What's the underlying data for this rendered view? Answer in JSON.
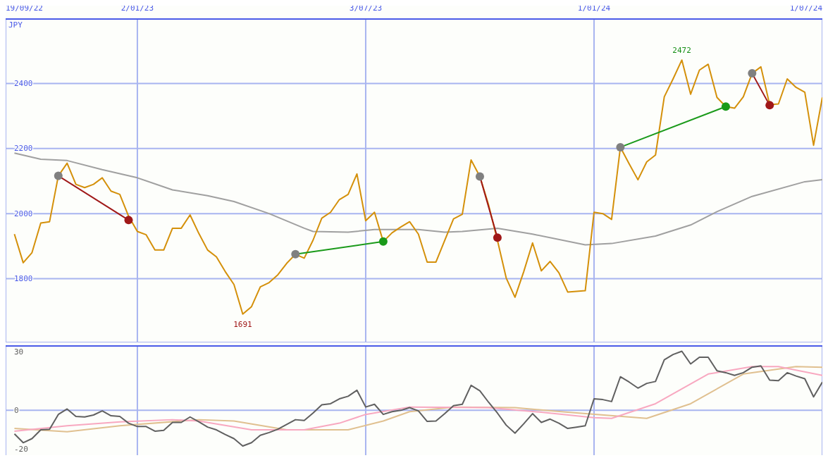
{
  "chart_data": [
    {
      "type": "line",
      "ylabel": "JPY",
      "grid": true,
      "marker": "none",
      "line_style": "solid",
      "xlim": [
        "2022-09-19",
        "2024-07-01"
      ],
      "xticks": [
        {
          "value": "2022-09-19",
          "label": "19/09/22"
        },
        {
          "value": "2023-01-02",
          "label": "2/01/23"
        },
        {
          "value": "2023-07-03",
          "label": "3/07/23"
        },
        {
          "value": "2024-01-01",
          "label": "1/01/24"
        },
        {
          "value": "2024-07-01",
          "label": "1/07/24"
        }
      ],
      "ylim": [
        1604,
        2598
      ],
      "yticks": [
        1800,
        2000,
        2200,
        2400
      ],
      "x": [
        "2022-09-26",
        "2022-10-03",
        "2022-10-10",
        "2022-10-17",
        "2022-10-24",
        "2022-10-31",
        "2022-11-07",
        "2022-11-14",
        "2022-11-21",
        "2022-11-28",
        "2022-12-05",
        "2022-12-12",
        "2022-12-19",
        "2022-12-26",
        "2023-01-02",
        "2023-01-09",
        "2023-01-16",
        "2023-01-23",
        "2023-01-30",
        "2023-02-06",
        "2023-02-13",
        "2023-02-20",
        "2023-02-27",
        "2023-03-06",
        "2023-03-13",
        "2023-03-20",
        "2023-03-27",
        "2023-04-03",
        "2023-04-10",
        "2023-04-17",
        "2023-04-24",
        "2023-05-01",
        "2023-05-08",
        "2023-05-15",
        "2023-05-22",
        "2023-05-29",
        "2023-06-05",
        "2023-06-12",
        "2023-06-19",
        "2023-06-26",
        "2023-07-03",
        "2023-07-10",
        "2023-07-17",
        "2023-07-24",
        "2023-07-31",
        "2023-08-07",
        "2023-08-14",
        "2023-08-21",
        "2023-08-28",
        "2023-09-04",
        "2023-09-11",
        "2023-09-18",
        "2023-09-25",
        "2023-10-02",
        "2023-10-09",
        "2023-10-16",
        "2023-10-23",
        "2023-10-30",
        "2023-11-06",
        "2023-11-13",
        "2023-11-20",
        "2023-11-27",
        "2023-12-04",
        "2023-12-11",
        "2023-12-18",
        "2023-12-25",
        "2024-01-01",
        "2024-01-08",
        "2024-01-15",
        "2024-01-22",
        "2024-01-29",
        "2024-02-05",
        "2024-02-12",
        "2024-02-19",
        "2024-02-26",
        "2024-03-04",
        "2024-03-11",
        "2024-03-18",
        "2024-03-25",
        "2024-04-01",
        "2024-04-08",
        "2024-04-15",
        "2024-04-22",
        "2024-04-29",
        "2024-05-06",
        "2024-05-13",
        "2024-05-20",
        "2024-05-27",
        "2024-06-03",
        "2024-06-10",
        "2024-06-17",
        "2024-06-24",
        "2024-07-01"
      ],
      "series": [
        {
          "color": "#a0a0a0",
          "x": [
            "2022-09-26",
            "2022-10-17",
            "2022-11-07",
            "2022-12-05",
            "2023-01-02",
            "2023-01-30",
            "2023-02-27",
            "2023-03-20",
            "2023-04-17",
            "2023-05-15",
            "2023-05-22",
            "2023-06-19",
            "2023-07-10",
            "2023-08-14",
            "2023-09-04",
            "2023-09-18",
            "2023-10-16",
            "2023-11-13",
            "2023-12-25",
            "2024-01-15",
            "2024-02-19",
            "2024-03-18",
            "2024-04-08",
            "2024-05-06",
            "2024-06-17",
            "2024-07-01"
          ],
          "values": [
            2186,
            2167,
            2163,
            2135,
            2110,
            2073,
            2055,
            2037,
            2000,
            1955,
            1945,
            1943,
            1951,
            1951,
            1943,
            1945,
            1955,
            1937,
            1904,
            1908,
            1931,
            1965,
            2006,
            2053,
            2098,
            2104
          ]
        },
        {
          "color": "#d4900a",
          "values": [
            1937,
            1849,
            1880,
            1971,
            1975,
            2116,
            2155,
            2090,
            2080,
            2090,
            2110,
            2069,
            2059,
            1992,
            1945,
            1935,
            1888,
            1888,
            1955,
            1955,
            1996,
            1939,
            1888,
            1867,
            1822,
            1782,
            1691,
            1714,
            1775,
            1788,
            1812,
            1847,
            1875,
            1863,
            1918,
            1986,
            2004,
            2043,
            2059,
            2122,
            1978,
            2004,
            1914,
            1941,
            1959,
            1975,
            1937,
            1851,
            1851,
            1918,
            1984,
            1998,
            2165,
            2114,
            2026,
            1918,
            1802,
            1743,
            1822,
            1910,
            1824,
            1853,
            1818,
            1759,
            1761,
            1763,
            2004,
            2000,
            1982,
            2204,
            2153,
            2104,
            2159,
            2180,
            2359,
            2414,
            2472,
            2367,
            2441,
            2459,
            2357,
            2329,
            2324,
            2359,
            2431,
            2451,
            2335,
            2337,
            2414,
            2388,
            2373,
            2210,
            2357
          ]
        },
        {
          "color": "#a01818",
          "marker": "circle",
          "x": [
            "2022-10-31",
            "2022-12-26"
          ],
          "values": [
            2116,
            1980
          ],
          "colors": [
            "#808080",
            "#a01818"
          ]
        },
        {
          "color": "#1a9a1a",
          "marker": "circle",
          "x": [
            "2023-05-08",
            "2023-07-17"
          ],
          "values": [
            1875,
            1914
          ],
          "colors": [
            "#808080",
            "#1a9a1a"
          ]
        },
        {
          "color": "#a01818",
          "marker": "circle",
          "x": [
            "2023-10-02",
            "2023-10-16"
          ],
          "values": [
            2114,
            1926
          ],
          "colors": [
            "#808080",
            "#a01818"
          ]
        },
        {
          "color": "#1a9a1a",
          "marker": "circle",
          "x": [
            "2024-01-22",
            "2024-04-15"
          ],
          "values": [
            2204,
            2329
          ],
          "colors": [
            "#808080",
            "#1a9a1a"
          ]
        },
        {
          "color": "#a01818",
          "marker": "circle",
          "x": [
            "2024-05-06",
            "2024-05-20"
          ],
          "values": [
            2431,
            2333
          ],
          "colors": [
            "#808080",
            "#a01818"
          ]
        }
      ],
      "annotations": [
        {
          "text": "2472",
          "x": "2024-03-11",
          "y": 2472
        },
        {
          "text": "1691",
          "x": "2023-03-27",
          "y": 1691
        }
      ]
    },
    {
      "type": "line",
      "grid": "x",
      "marker": "none",
      "line_style": "solid",
      "tick_labels": "y",
      "xlim": [
        "2022-09-19",
        "2024-07-01"
      ],
      "xticks": [
        {
          "value": "2022-09-19",
          "label": null
        },
        {
          "value": "2023-01-02",
          "label": null
        },
        {
          "value": "2023-07-03",
          "label": null
        },
        {
          "value": "2024-01-01",
          "label": null
        },
        {
          "value": "2024-07-01",
          "label": null
        }
      ],
      "ylim": [
        -23,
        33
      ],
      "yticks": [
        -20,
        0,
        30
      ],
      "ref_lines": [
        {
          "axis": "y",
          "value": 0,
          "color": "#a8b4f0"
        }
      ],
      "series": [
        {
          "color": "#e0c090",
          "x": [
            "2022-09-26",
            "2022-11-07",
            "2022-12-19",
            "2023-02-20",
            "2023-03-20",
            "2023-05-01",
            "2023-06-19",
            "2023-07-17",
            "2023-08-07",
            "2023-09-11",
            "2023-10-30",
            "2023-12-11",
            "2024-02-12",
            "2024-03-18",
            "2024-04-29",
            "2024-06-10",
            "2024-07-01"
          ],
          "values": [
            -9.3,
            -11,
            -7.9,
            -4.8,
            -5.5,
            -10,
            -10,
            -5.5,
            -0.7,
            1.7,
            1.4,
            -1,
            -4.1,
            3.4,
            18.6,
            22.4,
            22.1
          ]
        },
        {
          "color": "#f8a8c0",
          "x": [
            "2022-09-26",
            "2022-11-07",
            "2022-12-19",
            "2023-01-30",
            "2023-02-20",
            "2023-04-03",
            "2023-05-15",
            "2023-06-12",
            "2023-07-03",
            "2023-08-07",
            "2023-10-09",
            "2023-11-20",
            "2024-01-01",
            "2024-01-15",
            "2024-02-19",
            "2024-04-01",
            "2024-05-06",
            "2024-05-27",
            "2024-07-01"
          ],
          "values": [
            -10.7,
            -7.9,
            -5.9,
            -4.8,
            -5.5,
            -10,
            -10,
            -6.6,
            -2.1,
            1.7,
            1.4,
            -1,
            -3.8,
            -4.1,
            3.4,
            18.6,
            22.4,
            22.4,
            17.9
          ]
        },
        {
          "color": "#606060",
          "x": [
            "2022-09-26",
            "2022-10-03",
            "2022-10-10",
            "2022-10-17",
            "2022-10-24",
            "2022-10-31",
            "2022-11-07",
            "2022-11-14",
            "2022-11-21",
            "2022-11-28",
            "2022-12-05",
            "2022-12-12",
            "2022-12-19",
            "2022-12-26",
            "2023-01-02",
            "2023-01-09",
            "2023-01-16",
            "2023-01-23",
            "2023-01-30",
            "2023-02-06",
            "2023-02-13",
            "2023-02-20",
            "2023-02-27",
            "2023-03-06",
            "2023-03-13",
            "2023-03-20",
            "2023-03-27",
            "2023-04-03",
            "2023-04-10",
            "2023-04-17",
            "2023-04-24",
            "2023-05-01",
            "2023-05-08",
            "2023-05-15",
            "2023-05-22",
            "2023-05-29",
            "2023-06-05",
            "2023-06-12",
            "2023-06-19",
            "2023-06-26",
            "2023-07-03",
            "2023-07-10",
            "2023-07-17",
            "2023-07-24",
            "2023-07-31",
            "2023-08-07",
            "2023-08-14",
            "2023-08-21",
            "2023-08-28",
            "2023-09-04",
            "2023-09-11",
            "2023-09-18",
            "2023-09-25",
            "2023-10-02",
            "2023-10-09",
            "2023-10-16",
            "2023-10-23",
            "2023-10-30",
            "2023-11-06",
            "2023-11-13",
            "2023-11-20",
            "2023-11-27",
            "2023-12-04",
            "2023-12-11",
            "2023-12-18",
            "2023-12-25",
            "2024-01-01",
            "2024-01-08",
            "2024-01-15",
            "2024-01-22",
            "2024-01-29",
            "2024-02-05",
            "2024-02-12",
            "2024-02-19",
            "2024-02-26",
            "2024-03-04",
            "2024-03-11",
            "2024-03-18",
            "2024-03-25",
            "2024-04-01",
            "2024-04-08",
            "2024-04-15",
            "2024-04-22",
            "2024-04-29",
            "2024-05-06",
            "2024-05-13",
            "2024-05-20",
            "2024-05-27",
            "2024-06-03",
            "2024-06-10",
            "2024-06-17",
            "2024-06-24",
            "2024-07-01"
          ],
          "values": [
            -12.1,
            -16.6,
            -14.5,
            -10,
            -9.7,
            -2.1,
            0.7,
            -3.1,
            -3.4,
            -2.4,
            -0.3,
            -2.8,
            -3.1,
            -6.6,
            -8.3,
            -8.3,
            -10.7,
            -10.3,
            -6.2,
            -6.2,
            -3.4,
            -5.9,
            -8.6,
            -10,
            -12.4,
            -14.5,
            -18.3,
            -16.6,
            -12.8,
            -11.4,
            -9.7,
            -7.2,
            -4.8,
            -5.2,
            -1.4,
            2.8,
            3.4,
            5.9,
            7.2,
            10.3,
            1.7,
            3.1,
            -2.1,
            -0.7,
            0,
            1.4,
            -0.3,
            -5.7,
            -5.5,
            -1.7,
            2.4,
            3.1,
            12.8,
            10,
            4.1,
            -1.4,
            -7.6,
            -11.7,
            -6.9,
            -1.7,
            -6.2,
            -4.5,
            -6.6,
            -9.3,
            -8.6,
            -7.9,
            5.9,
            5.5,
            4.5,
            17.2,
            14.5,
            11.4,
            13.8,
            14.8,
            25.9,
            28.6,
            30.3,
            23.8,
            27.2,
            27.2,
            20.3,
            19.3,
            17.9,
            19.3,
            22.1,
            22.8,
            15.5,
            15.2,
            19.3,
            17.6,
            16.2,
            6.9,
            14.5
          ]
        }
      ]
    }
  ]
}
